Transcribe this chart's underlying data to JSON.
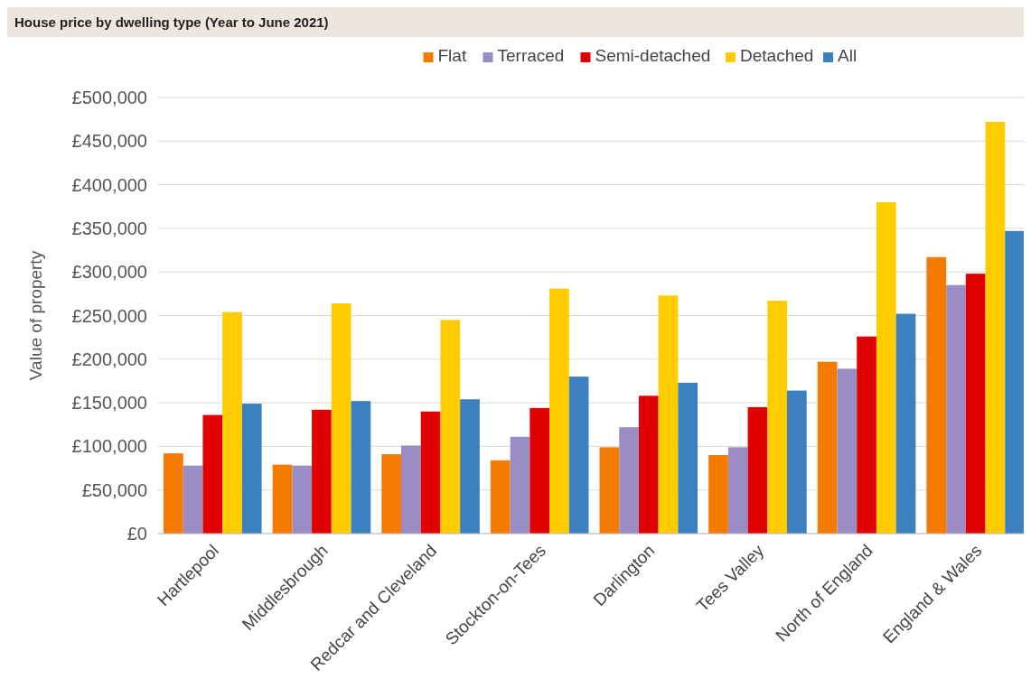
{
  "chart_data": {
    "type": "bar",
    "title": "House price by dwelling type (Year to June 2021)",
    "ylabel": "Value of property",
    "categories": [
      "Hartlepool",
      "Middlesbrough",
      "Redcar and Cleveland",
      "Stockton-on-Tees",
      "Darlington",
      "Tees Valley",
      "North of England",
      "England & Wales"
    ],
    "series": [
      {
        "name": "Flat",
        "color": "#f57a00",
        "values": [
          92000,
          79000,
          91000,
          84000,
          99000,
          90000,
          197000,
          317000
        ]
      },
      {
        "name": "Terraced",
        "color": "#9a8dc6",
        "values": [
          78000,
          78000,
          101000,
          111000,
          122000,
          99000,
          189000,
          285000
        ]
      },
      {
        "name": "Semi-detached",
        "color": "#e00000",
        "values": [
          136000,
          142000,
          140000,
          144000,
          158000,
          145000,
          226000,
          298000
        ]
      },
      {
        "name": "Detached",
        "color": "#ffcc00",
        "values": [
          254000,
          264000,
          245000,
          281000,
          273000,
          267000,
          380000,
          472000
        ]
      },
      {
        "name": "All",
        "color": "#3c80c0",
        "values": [
          149000,
          152000,
          154000,
          180000,
          173000,
          164000,
          252000,
          347000
        ]
      }
    ],
    "ylim": [
      0,
      500000
    ],
    "yticks": [
      {
        "value": 0,
        "label": "£0"
      },
      {
        "value": 50000,
        "label": "£50,000"
      },
      {
        "value": 100000,
        "label": "£100,000"
      },
      {
        "value": 150000,
        "label": "£150,000"
      },
      {
        "value": 200000,
        "label": "£200,000"
      },
      {
        "value": 250000,
        "label": "£250,000"
      },
      {
        "value": 300000,
        "label": "£300,000"
      },
      {
        "value": 350000,
        "label": "£350,000"
      },
      {
        "value": 400000,
        "label": "£400,000"
      },
      {
        "value": 450000,
        "label": "£450,000"
      },
      {
        "value": 500000,
        "label": "£500,000"
      }
    ],
    "grid": "y",
    "legend": "top"
  }
}
